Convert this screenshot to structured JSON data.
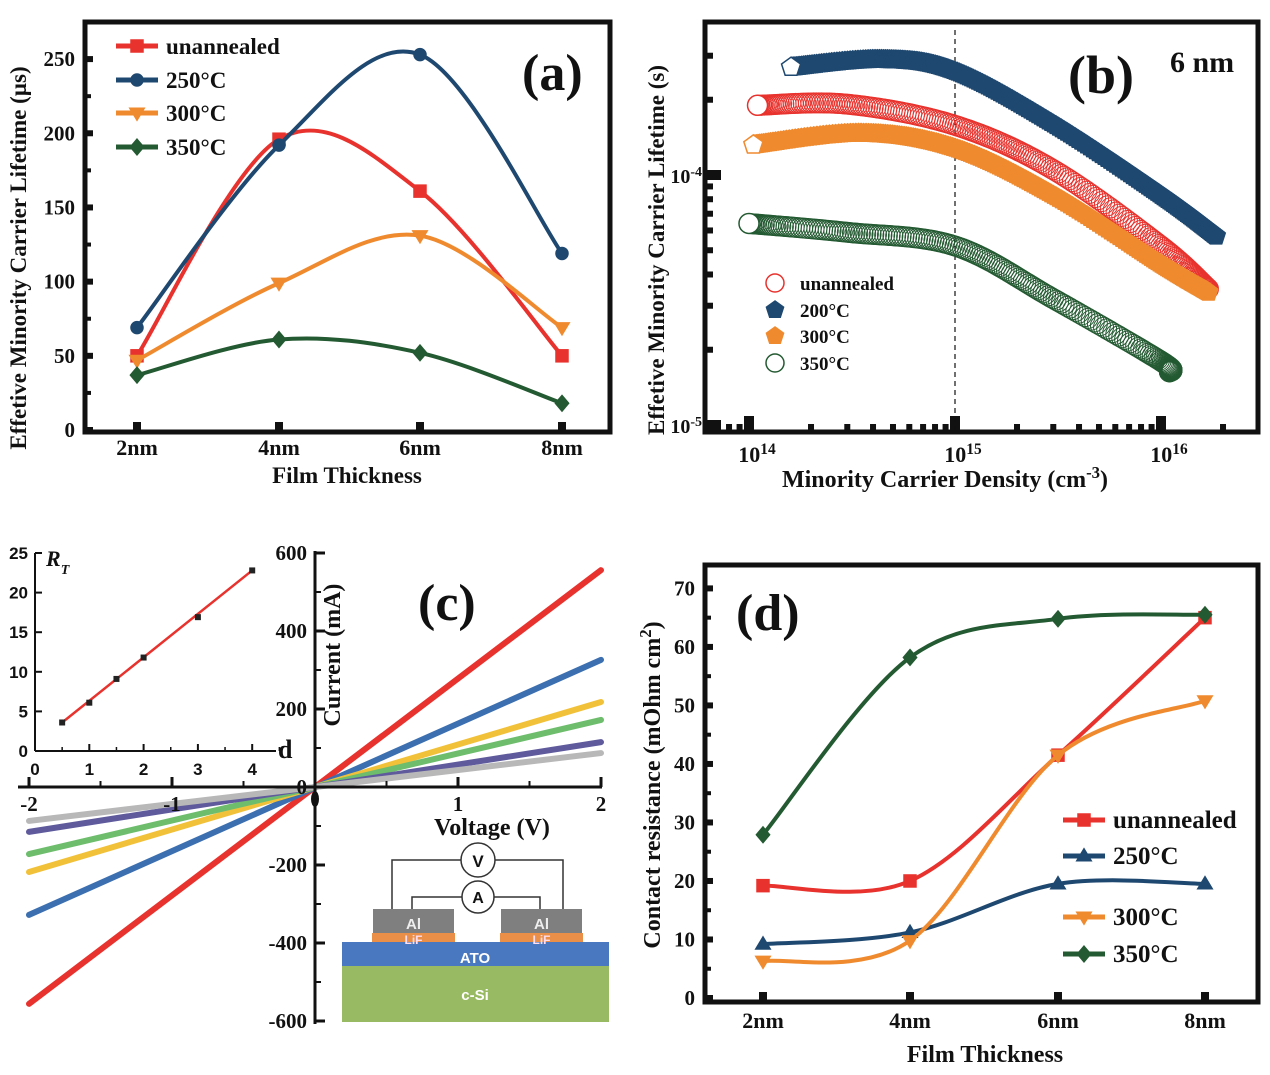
{
  "chart_data": [
    {
      "panel": "(a)",
      "type": "line",
      "categories": [
        "2nm",
        "4nm",
        "6nm",
        "8nm"
      ],
      "xlabel": "Film Thickness",
      "ylabel": "Effetive Minority Carrier Lifetime (µs)",
      "ylim": [
        0,
        275
      ],
      "yticks": [
        "0",
        "50",
        "100",
        "150",
        "200",
        "250"
      ],
      "legend": "top-left",
      "series": [
        {
          "name": "unannealed",
          "color": "#e8322d",
          "marker": "square",
          "values": [
            50,
            196,
            161,
            50
          ]
        },
        {
          "name": "250°C",
          "color": "#1f4870",
          "marker": "circle",
          "values": [
            69,
            192,
            253,
            119
          ]
        },
        {
          "name": "300°C",
          "color": "#f08a2e",
          "marker": "triangle-down",
          "values": [
            47,
            99,
            131,
            69
          ]
        },
        {
          "name": "350°C",
          "color": "#245a32",
          "marker": "diamond",
          "values": [
            37,
            61,
            52,
            18
          ]
        }
      ]
    },
    {
      "panel": "(b)",
      "type": "scatter",
      "annotation": "6 nm",
      "xlabel": [
        "Minority Carrier Density (cm",
        "-3",
        ")"
      ],
      "ylabel": "Effetive Minority Carrier Lifetime (s)",
      "xscale": "log",
      "yscale": "log",
      "xlim": [
        62000000000000.0,
        3e+16
      ],
      "ylim": [
        1e-05,
        0.00041
      ],
      "xticks": [
        {
          "base": "10",
          "exp": "14"
        },
        {
          "base": "10",
          "exp": "15"
        },
        {
          "base": "10",
          "exp": "16"
        }
      ],
      "yticks": [
        {
          "base": "10",
          "exp": "-4"
        },
        {
          "base": "10",
          "exp": "-5"
        }
      ],
      "reference_line_x": 1000000000000000.0,
      "legend": "bottom-left",
      "series": [
        {
          "name": "unannealed",
          "color": "#e8322d",
          "marker": "open-circle",
          "x": [
            110000000000000.0,
            300000000000000.0,
            1000000000000000.0,
            3000000000000000.0,
            1e+16,
            1.7e+16
          ],
          "y": [
            0.00019,
            0.000192,
            0.000158,
            0.000105,
            5.2e-05,
            3.5e-05
          ]
        },
        {
          "name": "200°C",
          "color": "#1f4870",
          "marker": "pentagon",
          "x": [
            160000000000000.0,
            440000000000000.0,
            1000000000000000.0,
            3000000000000000.0,
            1e+16,
            1.85e+16
          ],
          "y": [
            0.00027,
            0.00029,
            0.00026,
            0.00016,
            8.3e-05,
            5.7e-05
          ]
        },
        {
          "name": "300°C",
          "color": "#f08a2e",
          "marker": "pentagon",
          "x": [
            105000000000000.0,
            350000000000000.0,
            1000000000000000.0,
            3000000000000000.0,
            1e+16,
            1.7e+16
          ],
          "y": [
            0.000132,
            0.000147,
            0.000128,
            8.3e-05,
            4.4e-05,
            3.4e-05
          ]
        },
        {
          "name": "350°C",
          "color": "#245a32",
          "marker": "open-circle",
          "x": [
            100000000000000.0,
            300000000000000.0,
            1000000000000000.0,
            3000000000000000.0,
            1e+16,
            1.1e+16
          ],
          "y": [
            6.4e-05,
            5.9e-05,
            5.2e-05,
            3.2e-05,
            1.8e-05,
            1.63e-05
          ]
        }
      ]
    },
    {
      "panel": "(c)",
      "type": "line",
      "xlabel": "Voltage (V)",
      "ylabel": "Current (mA)",
      "xlim": [
        -2,
        2
      ],
      "ylim": [
        -600,
        600
      ],
      "xticks": [
        "-2",
        "-1",
        "1",
        "2"
      ],
      "xtick_values": [
        -2,
        -1,
        1,
        2
      ],
      "yticks": [
        "600",
        "400",
        "200",
        "0",
        "-200",
        "-400",
        "-600"
      ],
      "ytick_values": [
        600,
        400,
        200,
        0,
        -200,
        -400,
        -600
      ],
      "series": [
        {
          "color": "#e8322d",
          "x": [
            -2,
            2
          ],
          "y": [
            -556,
            556
          ]
        },
        {
          "color": "#3b6fb0",
          "x": [
            -2,
            2
          ],
          "y": [
            -328,
            326
          ]
        },
        {
          "color": "#f2c13a",
          "x": [
            -2,
            2
          ],
          "y": [
            -218,
            218
          ]
        },
        {
          "color": "#6dbd6d",
          "x": [
            -2,
            2
          ],
          "y": [
            -172,
            172
          ]
        },
        {
          "color": "#5e5a9c",
          "x": [
            -2,
            2
          ],
          "y": [
            -115,
            115
          ]
        },
        {
          "color": "#b8b8b8",
          "x": [
            -2,
            2
          ],
          "y": [
            -87,
            87
          ]
        }
      ],
      "inset": {
        "type": "line",
        "ylabel": "R",
        "ylabel_sub": "T",
        "xlabel": "d",
        "xlim": [
          0,
          4.4
        ],
        "ylim": [
          0,
          25
        ],
        "xticks": [
          "0",
          "1",
          "2",
          "3",
          "4"
        ],
        "yticks": [
          "0",
          "5",
          "10",
          "15",
          "20",
          "25"
        ],
        "points": {
          "x": [
            0.5,
            1,
            1.5,
            2,
            3,
            4
          ],
          "y": [
            3.6,
            6.1,
            9.1,
            11.8,
            16.9,
            22.8
          ]
        },
        "fit_color": "#e8322d"
      },
      "diagram": {
        "voltmeter": "V",
        "ammeter": "A",
        "electrode": "Al",
        "interlayer": "LiF",
        "film": "ATO",
        "substrate": "c-Si",
        "colors": {
          "electrode": "#7f7f7f",
          "interlayer": "#e98f47",
          "film": "#4a78c0",
          "substrate": "#98ba62"
        }
      }
    },
    {
      "panel": "(d)",
      "type": "line",
      "categories": [
        "2nm",
        "4nm",
        "6nm",
        "8nm"
      ],
      "xlabel": "Film Thickness",
      "ylabel": [
        "Contact resistance (mOhm cm",
        "2",
        ")"
      ],
      "ylim": [
        0,
        74
      ],
      "yticks": [
        "0",
        "10",
        "20",
        "30",
        "40",
        "50",
        "60",
        "70"
      ],
      "legend": "bottom-right",
      "series": [
        {
          "name": "unannealed",
          "color": "#e8322d",
          "marker": "square",
          "values": [
            19.2,
            20,
            41.5,
            65
          ]
        },
        {
          "name": "250°C",
          "color": "#1f4870",
          "marker": "triangle-up",
          "values": [
            9.2,
            11.2,
            19.5,
            19.5
          ]
        },
        {
          "name": "300°C",
          "color": "#f08a2e",
          "marker": "triangle-down",
          "values": [
            6.3,
            9.8,
            41.5,
            50.8
          ]
        },
        {
          "name": "350°C",
          "color": "#245a32",
          "marker": "diamond",
          "values": [
            27.9,
            58.2,
            64.8,
            65.5
          ]
        }
      ]
    }
  ]
}
